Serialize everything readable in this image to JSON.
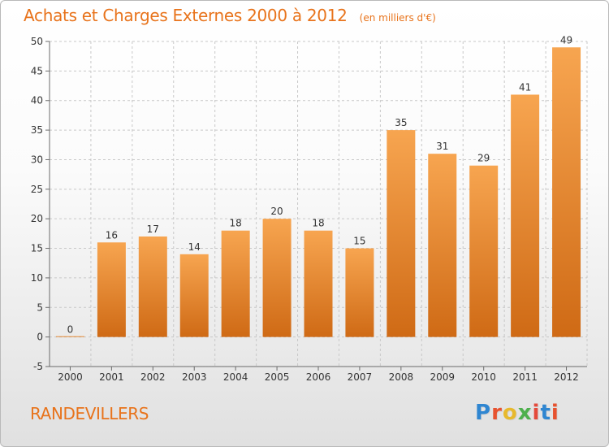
{
  "header": {
    "title": "Achats et Charges Externes 2000 à 2012",
    "unit_note": "(en milliers d'€)"
  },
  "footer": {
    "location": "RANDEVILLERS",
    "logo": {
      "letters": [
        "P",
        "r",
        "o",
        "x",
        "i",
        "t",
        "i"
      ],
      "colors": [
        "#2f86d1",
        "#e7522f",
        "#e7b92d",
        "#4eb04d",
        "#e44a3b",
        "#2f86d1",
        "#e7522f"
      ]
    }
  },
  "chart_data": {
    "type": "bar",
    "title": "Achats et Charges Externes 2000 à 2012",
    "subtitle": "(en milliers d'€)",
    "categories": [
      "2000",
      "2001",
      "2002",
      "2003",
      "2004",
      "2005",
      "2006",
      "2007",
      "2008",
      "2009",
      "2010",
      "2011",
      "2012"
    ],
    "values": [
      0,
      16,
      17,
      14,
      18,
      20,
      18,
      15,
      35,
      31,
      29,
      41,
      49
    ],
    "data_labels": [
      "0",
      "16",
      "17",
      "14",
      "18",
      "20",
      "18",
      "15",
      "35",
      "31",
      "29",
      "41",
      "49"
    ],
    "xlabel": "",
    "ylabel": "",
    "ylim": [
      -5,
      50
    ],
    "yticks": [
      -5,
      0,
      5,
      10,
      15,
      20,
      25,
      30,
      35,
      40,
      45,
      50
    ],
    "grid": true,
    "colors": {
      "bar_top": "#f7a550",
      "bar_bottom": "#cf6a15",
      "grid": "#c8c8c8",
      "axis": "#6b6b6b",
      "title": "#e8731b"
    }
  }
}
